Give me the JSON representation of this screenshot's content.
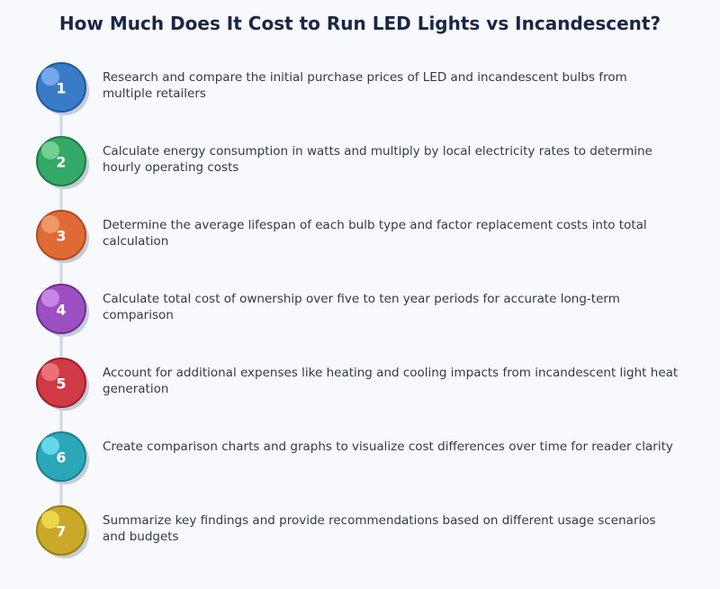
{
  "title": "How Much Does It Cost to Run LED Lights vs Incandescent?",
  "steps": [
    {
      "number": "1",
      "text": "Research and compare the initial purchase prices of LED and incandescent bulbs from multiple retailers"
    },
    {
      "number": "2",
      "text": "Calculate energy consumption in watts and multiply by local electricity rates to determine hourly operating costs"
    },
    {
      "number": "3",
      "text": "Determine the average lifespan of each bulb type and factor replacement costs into total calculation"
    },
    {
      "number": "4",
      "text": "Calculate total cost of ownership over five to ten year periods for accurate long-term comparison"
    },
    {
      "number": "5",
      "text": "Account for additional expenses like heating and cooling impacts from incandescent light heat generation"
    },
    {
      "number": "6",
      "text": "Create comparison charts and graphs to visualize cost differences over time for reader clarity"
    },
    {
      "number": "7",
      "text": "Summarize key findings and provide recommendations based on different usage scenarios and budgets"
    }
  ]
}
